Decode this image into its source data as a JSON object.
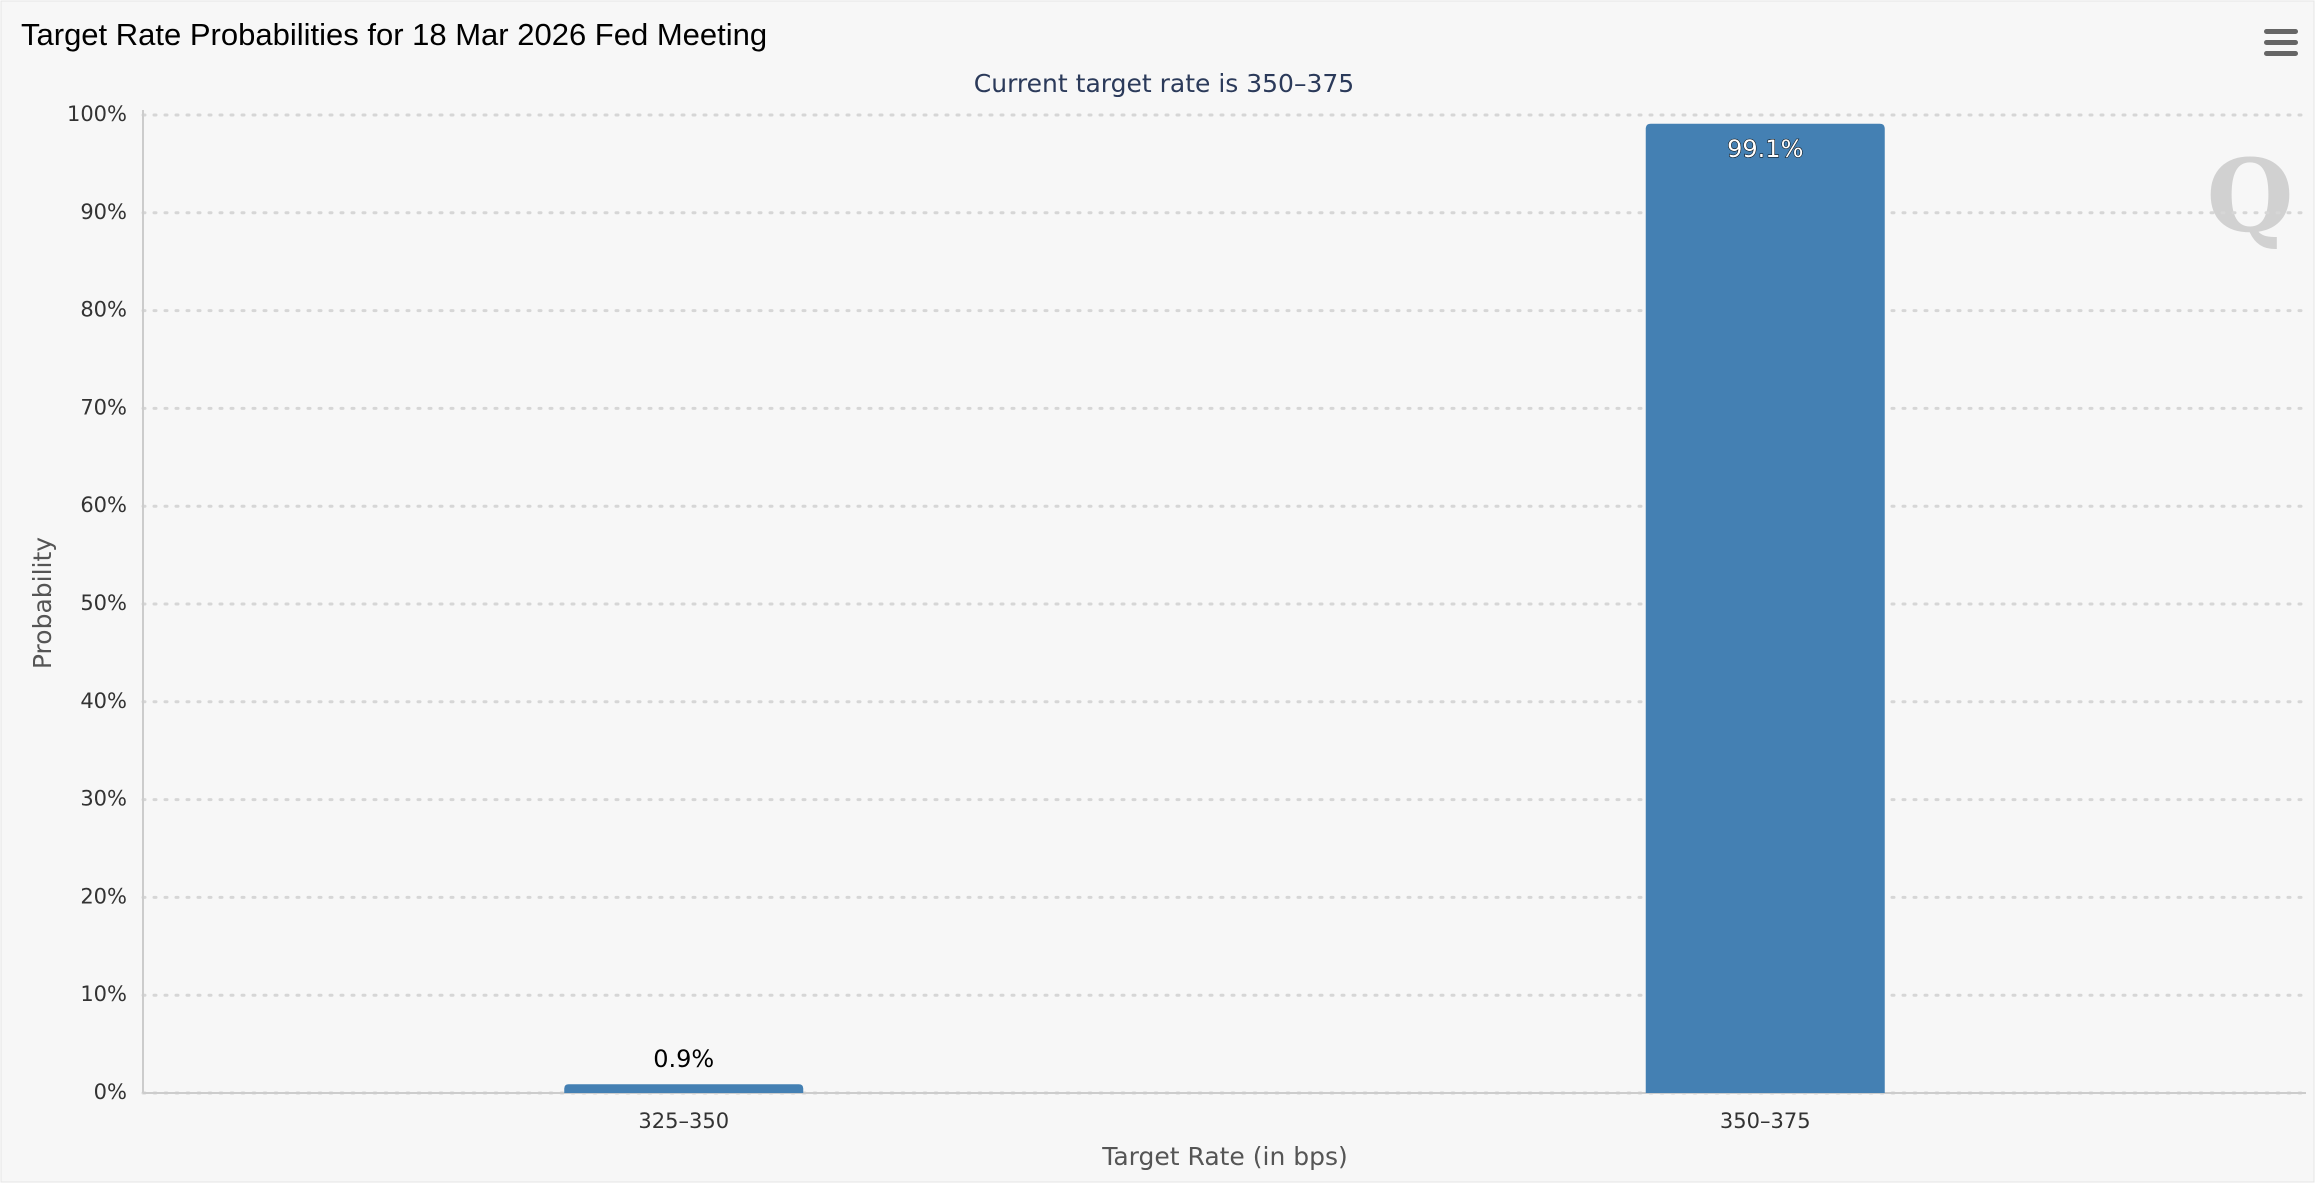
{
  "chart_data": {
    "type": "bar",
    "title": "Target Rate Probabilities for 18 Mar 2026 Fed Meeting",
    "subtitle": "Current target rate is 350–375",
    "x_label": "Target Rate (in bps)",
    "y_label": "Probability",
    "categories": [
      "325–350",
      "350–375"
    ],
    "values": [
      0.9,
      99.1
    ],
    "value_labels": [
      "0.9%",
      "99.1%"
    ],
    "color": "#4480b3",
    "ylim": [
      0,
      100
    ],
    "yticks": [
      {
        "value": 0,
        "label": "0%"
      },
      {
        "value": 10,
        "label": "10%"
      },
      {
        "value": 20,
        "label": "20%"
      },
      {
        "value": 30,
        "label": "30%"
      },
      {
        "value": 40,
        "label": "40%"
      },
      {
        "value": 50,
        "label": "50%"
      },
      {
        "value": 60,
        "label": "60%"
      },
      {
        "value": 70,
        "label": "70%"
      },
      {
        "value": 80,
        "label": "80%"
      },
      {
        "value": 90,
        "label": "90%"
      },
      {
        "value": 100,
        "label": "100%"
      }
    ],
    "grid": true
  }
}
